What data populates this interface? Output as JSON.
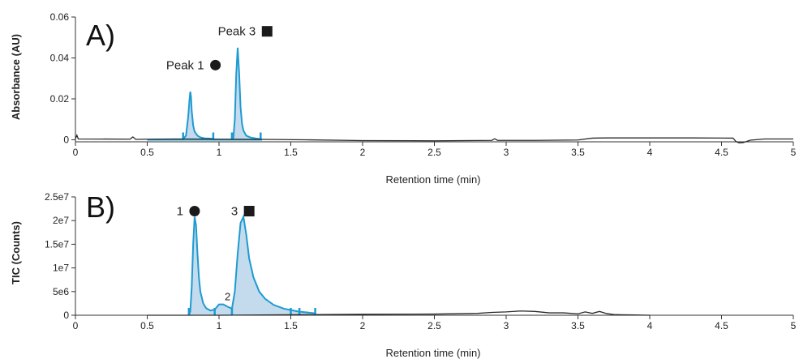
{
  "colors": {
    "trace": "#2a2a2a",
    "peak_line": "#1e9bd1",
    "peak_fill": "#b9d5ea",
    "axis": "#333333",
    "marker": "#1a1a1a"
  },
  "chart_data": [
    {
      "panel_label": "A)",
      "type": "line",
      "xlabel": "Retention time (min)",
      "ylabel": "Absorbance (AU)",
      "xlim": [
        0,
        5
      ],
      "ylim": [
        -0.001,
        0.06
      ],
      "x_ticks": [
        0,
        0.5,
        1,
        1.5,
        2,
        2.5,
        3,
        3.5,
        4,
        4.5,
        5
      ],
      "x_tick_labels": [
        "0",
        "0.5",
        "1",
        "1.5",
        "2",
        "2.5",
        "3",
        "3.5",
        "4",
        "4.5",
        "5"
      ],
      "y_ticks": [
        0,
        0.02,
        0.04,
        0.06
      ],
      "y_tick_labels": [
        "0",
        "0.02",
        "0.04",
        "0.06"
      ],
      "grid": false,
      "baseline": {
        "x": [
          0,
          0.01,
          0.02,
          0.38,
          0.4,
          0.42,
          0.5,
          0.7,
          1.0,
          1.3,
          1.6,
          2.0,
          2.5,
          2.9,
          2.92,
          2.94,
          3.2,
          3.5,
          3.6,
          3.7,
          4.0,
          4.3,
          4.58,
          4.6,
          4.62,
          4.65,
          4.7,
          4.8,
          5.0
        ],
        "y": [
          0.0005,
          0.0022,
          0.0004,
          0.0003,
          0.0014,
          0.0002,
          0.0003,
          0.0004,
          0.0003,
          0.0002,
          0.0,
          -0.0004,
          -0.0005,
          -0.0003,
          0.0005,
          -0.0003,
          -0.0003,
          -0.0001,
          0.0008,
          0.0009,
          0.0009,
          0.0009,
          0.0008,
          -0.0008,
          -0.0015,
          -0.0014,
          -0.0002,
          0.0004,
          0.0004
        ]
      },
      "peaks": [
        {
          "x": [
            0.75,
            0.77,
            0.785,
            0.795,
            0.8,
            0.805,
            0.81,
            0.82,
            0.83,
            0.85,
            0.87,
            0.9,
            0.96
          ],
          "y": [
            0.0004,
            0.002,
            0.011,
            0.02,
            0.0235,
            0.021,
            0.014,
            0.007,
            0.004,
            0.002,
            0.0012,
            0.0007,
            0.0005
          ]
        },
        {
          "x": [
            1.09,
            1.1,
            1.11,
            1.12,
            1.13,
            1.14,
            1.15,
            1.16,
            1.17,
            1.19,
            1.22,
            1.26,
            1.29
          ],
          "y": [
            0.0003,
            0.001,
            0.01,
            0.032,
            0.045,
            0.033,
            0.016,
            0.008,
            0.0045,
            0.002,
            0.0011,
            0.0006,
            0.0004
          ]
        }
      ],
      "integration_marks": [
        0.75,
        0.96,
        1.09,
        1.29
      ],
      "integration_line": [
        0.5,
        1.3
      ],
      "annotations": [
        {
          "text": "Peak 1",
          "marker": "circle",
          "x": 0.975,
          "y": 0.0365
        },
        {
          "text": "Peak 3",
          "marker": "square",
          "x": 1.335,
          "y": 0.053
        }
      ]
    },
    {
      "panel_label": "B)",
      "type": "line",
      "xlabel": "Retention time (min)",
      "ylabel": "TIC (Counts)",
      "xlim": [
        0,
        5
      ],
      "ylim": [
        0,
        25000000.0
      ],
      "x_ticks": [
        0,
        0.5,
        1,
        1.5,
        2,
        2.5,
        3,
        3.5,
        4,
        4.5,
        5
      ],
      "x_tick_labels": [
        "0",
        "0.5",
        "1",
        "1.5",
        "2",
        "2.5",
        "3",
        "3.5",
        "4",
        "4.5",
        "5"
      ],
      "y_ticks": [
        0,
        5000000,
        10000000,
        15000000,
        20000000,
        25000000
      ],
      "y_tick_labels": [
        "0",
        "5e6",
        "1e7",
        "1.5e7",
        "2e7",
        "2.5e7"
      ],
      "grid": false,
      "baseline": {
        "x": [
          0.5,
          0.8,
          1.0,
          1.5,
          2.0,
          2.5,
          2.8,
          2.9,
          3.0,
          3.1,
          3.2,
          3.3,
          3.4,
          3.5,
          3.55,
          3.6,
          3.65,
          3.7,
          3.75,
          3.8,
          3.9,
          4.0
        ],
        "y": [
          0,
          0,
          0,
          100000,
          200000,
          250000,
          400000,
          600000,
          700000,
          900000,
          800000,
          500000,
          500000,
          300000,
          700000,
          400000,
          800000,
          350000,
          150000,
          100000,
          50000,
          0
        ]
      },
      "peaks": [
        {
          "x": [
            0.79,
            0.8,
            0.81,
            0.82,
            0.83,
            0.84,
            0.85,
            0.86,
            0.87,
            0.89,
            0.91,
            0.94,
            0.97,
            1.0,
            1.03,
            1.06,
            1.09
          ],
          "y": [
            0,
            800000,
            6000000,
            15000000,
            20800000,
            19000000,
            13000000,
            8000000,
            5000000,
            2500000,
            1500000,
            1000000,
            1200000,
            2300000,
            2300000,
            1800000,
            1400000
          ]
        },
        {
          "x": [
            1.09,
            1.11,
            1.13,
            1.15,
            1.17,
            1.19,
            1.21,
            1.24,
            1.28,
            1.32,
            1.38,
            1.45,
            1.55,
            1.67
          ],
          "y": [
            1400000,
            5000000,
            13000000,
            19500000,
            20800000,
            17000000,
            12000000,
            8000000,
            5000000,
            3500000,
            2200000,
            1400000,
            800000,
            400000
          ]
        }
      ],
      "integration_marks": [
        0.79,
        0.97,
        1.09,
        1.5,
        1.56,
        1.67
      ],
      "annotations": [
        {
          "text": "1",
          "marker": "circle",
          "x": 0.83,
          "y": 22000000
        },
        {
          "text": "3",
          "marker": "square",
          "x": 1.21,
          "y": 22000000
        },
        {
          "text": "2",
          "marker": "none",
          "x": 1.06,
          "y": 3200000
        }
      ]
    }
  ]
}
